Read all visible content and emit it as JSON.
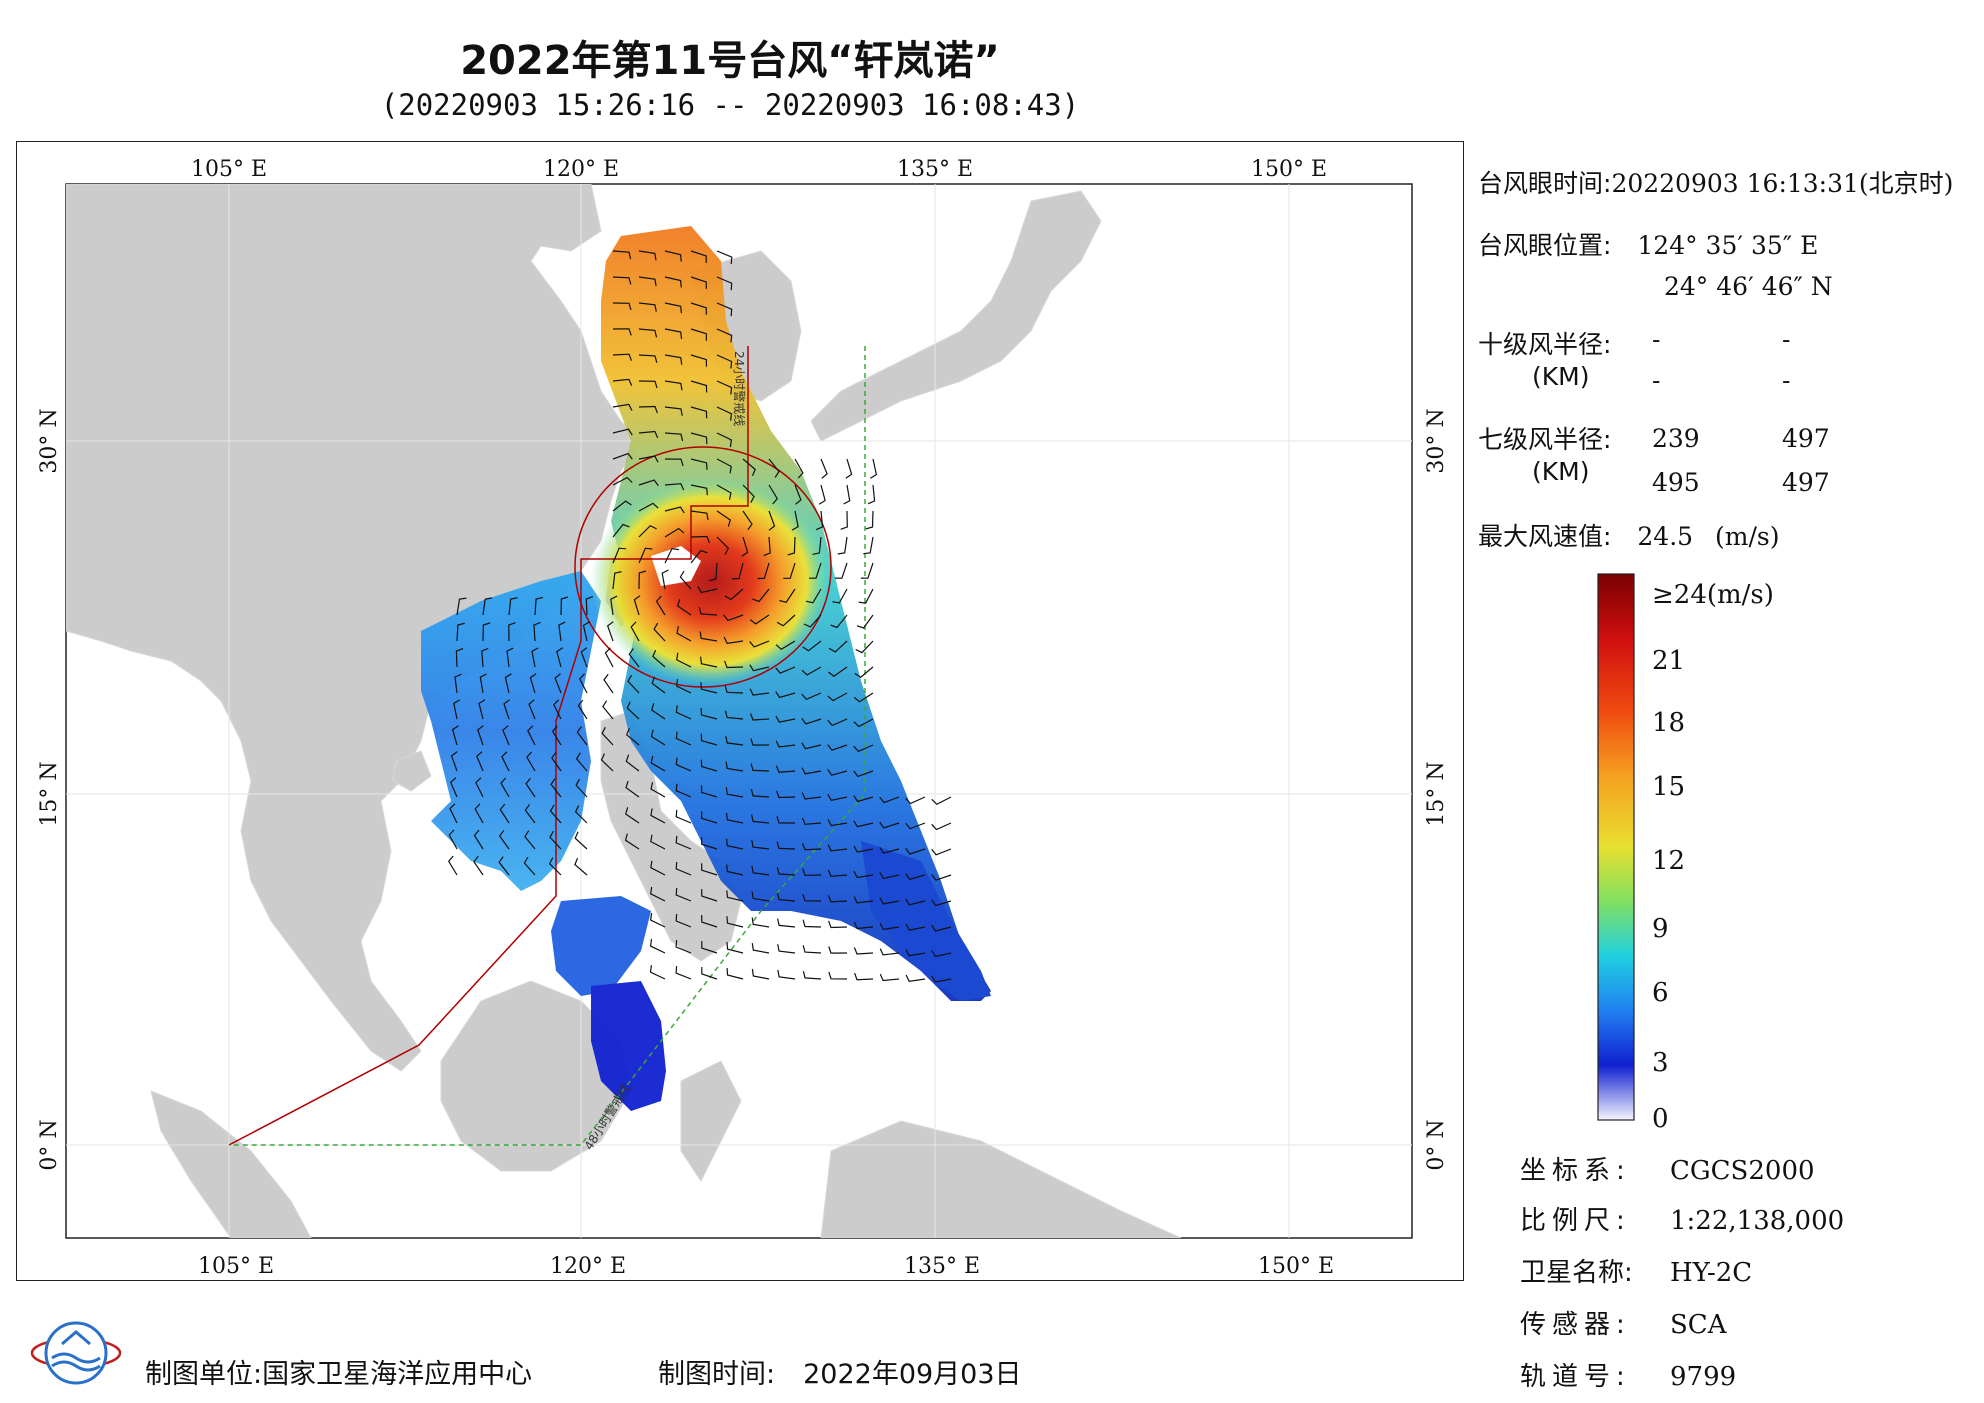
{
  "header": {
    "title": "2022年第11号台风“轩岚诺”",
    "subtitle": "(20220903 15:26:16 -- 20220903 16:08:43)"
  },
  "map": {
    "lon_range": [
      95.5,
      152.5
    ],
    "lat_range": [
      -4,
      41
    ],
    "lon_ticks": [
      "105° E",
      "120° E",
      "135° E",
      "150° E"
    ],
    "lat_ticks": [
      "30° N",
      "15° N",
      "0° N"
    ],
    "warning_line_48h": "48小时警戒线",
    "warning_line_24h": "24小时警戒线",
    "colors": {
      "land": "#cccccc",
      "sea": "#ffffff",
      "line_24h": "#b00000",
      "line_48h": "#3aa83a"
    }
  },
  "info": {
    "eye_time_label": "台风眼时间:",
    "eye_time_value": "20220903 16:13:31(北京时)",
    "eye_pos_label": "台风眼位置:",
    "eye_lon": "124° 35′ 35″ E",
    "eye_lat": "24° 46′ 46″ N",
    "r10_label": "十级风半径:",
    "r10_unit": "(KM)",
    "r10_values": [
      "-",
      "-",
      "-",
      "-"
    ],
    "r7_label": "七级风半径:",
    "r7_unit": "(KM)",
    "r7_values": [
      "239",
      "497",
      "495",
      "497"
    ],
    "max_wind_label": "最大风速值:",
    "max_wind_value": "24.5",
    "max_wind_unit": "(m/s)"
  },
  "colorbar": {
    "labels": [
      "≥24(m/s)",
      "21",
      "18",
      "15",
      "12",
      "9",
      "6",
      "3",
      "0"
    ],
    "values": [
      24,
      21,
      18,
      15,
      12,
      9,
      6,
      3,
      0
    ]
  },
  "meta": {
    "coord_label": "坐标系:",
    "coord_value": "CGCS2000",
    "scale_label": "比例尺:",
    "scale_value": "1:22,138,000",
    "satellite_label": "卫星名称:",
    "satellite_value": "HY-2C",
    "sensor_label": "传感器:",
    "sensor_value": "SCA",
    "orbit_label": "轨道号:",
    "orbit_value": "9799"
  },
  "footer": {
    "unit_label": "制图单位:",
    "unit_value": "国家卫星海洋应用中心",
    "date_label": "制图时间:",
    "date_value": "2022年09月03日"
  }
}
